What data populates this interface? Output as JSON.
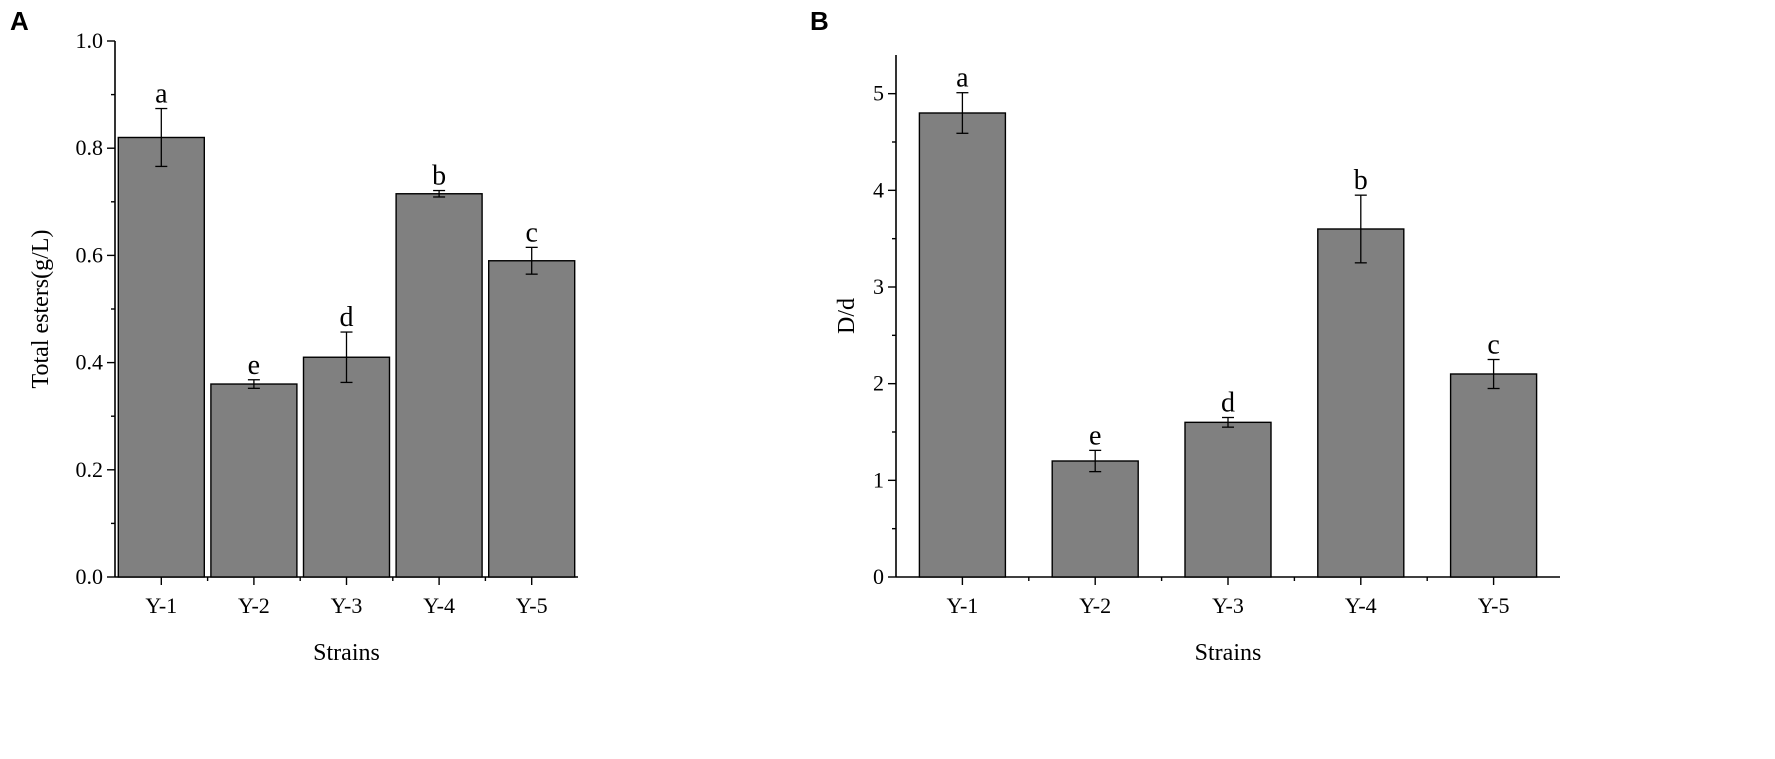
{
  "chart_data": [
    {
      "panel_label": "A",
      "type": "bar",
      "categories": [
        "Y-1",
        "Y-2",
        "Y-3",
        "Y-4",
        "Y-5"
      ],
      "values": [
        0.82,
        0.36,
        0.41,
        0.715,
        0.59
      ],
      "errors": [
        0.054,
        0.008,
        0.047,
        0.006,
        0.025
      ],
      "significance": [
        "a",
        "e",
        "d",
        "b",
        "c"
      ],
      "xlabel": "Strains",
      "ylabel": "Total esters(g/L)",
      "ylim": [
        0,
        1.0
      ],
      "yticks": [
        0.0,
        0.2,
        0.4,
        0.6,
        0.8,
        1.0
      ],
      "ytick_labels": [
        "0.0",
        "0.2",
        "0.4",
        "0.6",
        "0.8",
        "1.0"
      ],
      "bar_color": "#808080",
      "grid": false
    },
    {
      "panel_label": "B",
      "type": "bar",
      "categories": [
        "Y-1",
        "Y-2",
        "Y-3",
        "Y-4",
        "Y-5"
      ],
      "values": [
        4.8,
        1.2,
        1.6,
        3.6,
        2.1
      ],
      "errors": [
        0.21,
        0.11,
        0.05,
        0.35,
        0.15
      ],
      "significance": [
        "a",
        "e",
        "d",
        "b",
        "c"
      ],
      "xlabel": "Strains",
      "ylabel": "D/d",
      "ylim": [
        0,
        5.4
      ],
      "yticks": [
        0,
        1,
        2,
        3,
        4,
        5
      ],
      "ytick_labels": [
        "0",
        "1",
        "2",
        "3",
        "4",
        "5"
      ],
      "bar_color": "#808080",
      "grid": false
    }
  ]
}
